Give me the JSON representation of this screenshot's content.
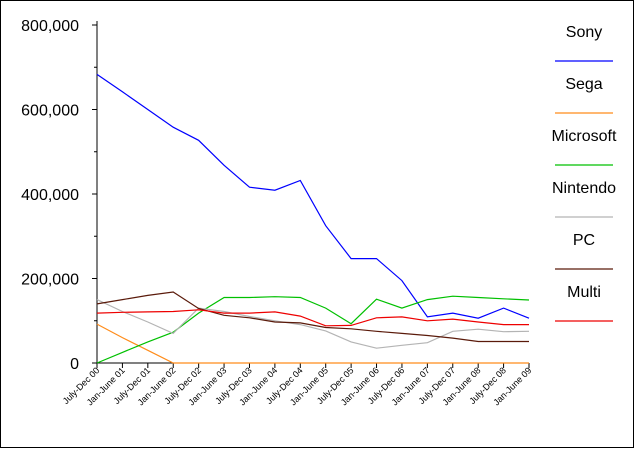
{
  "chart_data": {
    "type": "line",
    "title": "",
    "xlabel": "",
    "ylabel": "",
    "ylim": [
      0,
      800000
    ],
    "yticks": [
      "0",
      "200,000",
      "400,000",
      "600,000",
      "800,000"
    ],
    "ytick_values": [
      0,
      200000,
      400000,
      600000,
      800000
    ],
    "grid": false,
    "legend_position": "right",
    "categories": [
      "July-Dec 00",
      "Jan-June 01",
      "July-Dec 01",
      "Jan-June 02",
      "July-Dec 02",
      "Jan-June 03",
      "July-Dec 03",
      "Jan-June 04",
      "July-Dec 04",
      "Jan-June 05",
      "July-Dec 05",
      "Jan-June 06",
      "July-Dec 06",
      "Jan-June 07",
      "July-Dec 07",
      "Jan-June 08",
      "July-Dec 08",
      "Jan-June 09"
    ],
    "series": [
      {
        "name": "Sony",
        "color": "#0000ff",
        "values": [
          683000,
          642000,
          600000,
          558000,
          527000,
          468000,
          416000,
          409000,
          432000,
          325000,
          247000,
          247000,
          195000,
          109000,
          118000,
          106000,
          130000,
          106000
        ]
      },
      {
        "name": "Sega",
        "color": "#ff8c1a",
        "values": [
          92000,
          60000,
          30000,
          0,
          0,
          0,
          0,
          0,
          0,
          0,
          0,
          0,
          0,
          0,
          0,
          0,
          0,
          0
        ]
      },
      {
        "name": "Microsoft",
        "color": "#00c000",
        "values": [
          0,
          25000,
          50000,
          73000,
          118000,
          155000,
          155000,
          157000,
          155000,
          130000,
          93000,
          151000,
          130000,
          150000,
          158000,
          155000,
          152000,
          149000
        ]
      },
      {
        "name": "Nintendo",
        "color": "#b4b4b4",
        "values": [
          150000,
          122000,
          97000,
          70000,
          130000,
          122000,
          110000,
          100000,
          91000,
          76000,
          50000,
          35000,
          42000,
          48000,
          75000,
          80000,
          74000,
          75000
        ]
      },
      {
        "name": "PC",
        "color": "#5a1a0a",
        "values": [
          140000,
          150000,
          160000,
          168000,
          129000,
          113000,
          107000,
          97000,
          95000,
          84000,
          81000,
          75000,
          70000,
          65000,
          59000,
          51000,
          51000,
          51000
        ]
      },
      {
        "name": "Multi",
        "color": "#ee0000",
        "values": [
          118000,
          120000,
          121000,
          122000,
          126000,
          118000,
          118000,
          121000,
          111000,
          88000,
          89000,
          107000,
          109000,
          100000,
          104000,
          97000,
          91000,
          91000
        ]
      }
    ]
  }
}
